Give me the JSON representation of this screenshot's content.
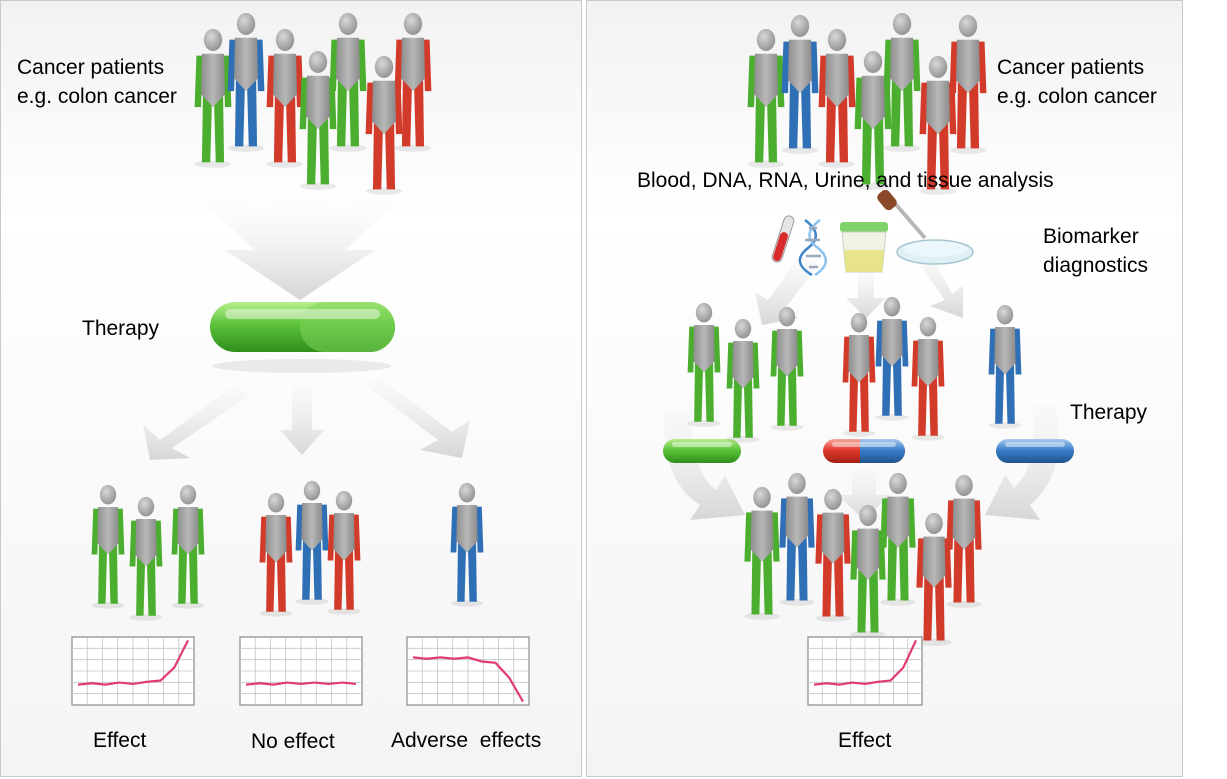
{
  "colors": {
    "green": "#4cae2e",
    "red": "#d23a2a",
    "blue": "#2f6fb5",
    "grey": "#a2a2a2",
    "chart_line": "#e03c6e"
  },
  "left_panel": {
    "population_label": [
      "Cancer patients",
      "e.g. colon cancer"
    ],
    "therapy_label": "Therapy",
    "outcomes": [
      {
        "label": "Effect",
        "trend": [
          0.3,
          0.32,
          0.3,
          0.33,
          0.31,
          0.34,
          0.36,
          0.55,
          0.95
        ]
      },
      {
        "label": "No effect",
        "trend": [
          0.3,
          0.32,
          0.3,
          0.33,
          0.31,
          0.33,
          0.31,
          0.33,
          0.31
        ]
      },
      {
        "label": "Adverse  effects",
        "trend": [
          0.7,
          0.68,
          0.7,
          0.68,
          0.7,
          0.64,
          0.62,
          0.4,
          0.05
        ]
      }
    ]
  },
  "right_panel": {
    "population_label": [
      "Cancer patients",
      "e.g. colon cancer"
    ],
    "analysis_label": "Blood, DNA, RNA, Urine, and tissue analysis",
    "diagnostics_label": [
      "Biomarker",
      "diagnostics"
    ],
    "therapy_label": "Therapy",
    "outcome": {
      "label": "Effect",
      "trend": [
        0.3,
        0.32,
        0.3,
        0.33,
        0.31,
        0.34,
        0.36,
        0.55,
        0.95
      ]
    }
  }
}
